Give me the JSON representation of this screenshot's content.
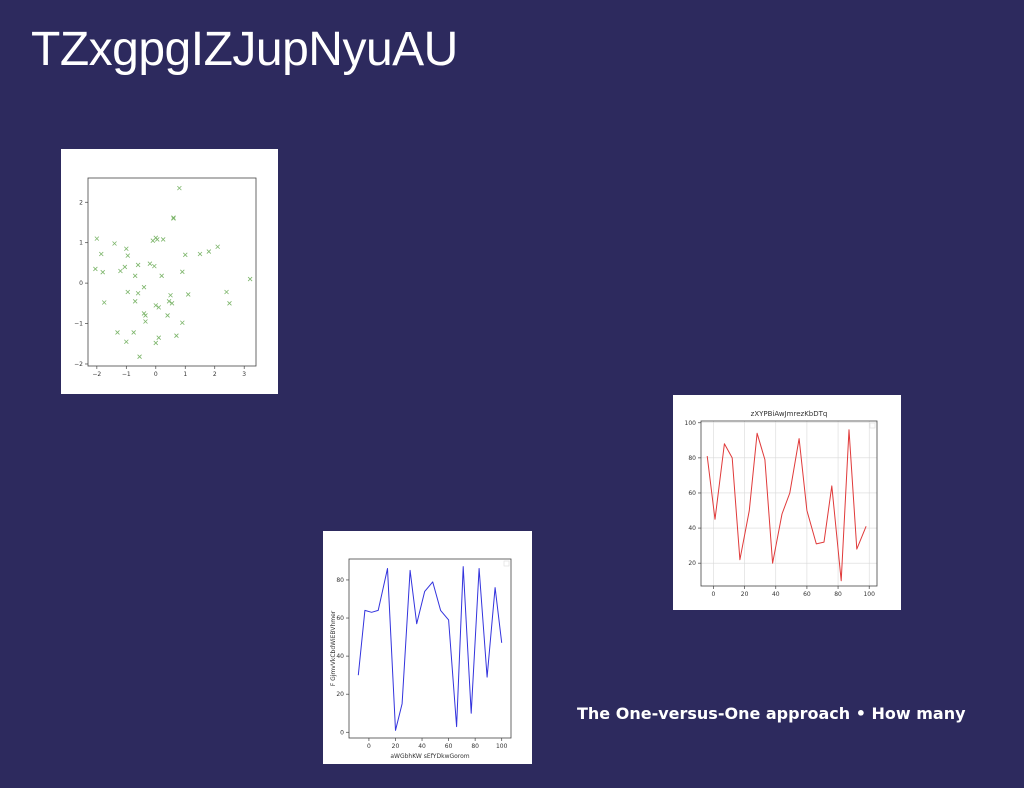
{
  "slide": {
    "title": "TZxgpgIZJupNyuAU",
    "caption": "The One-versus-One approach • How many",
    "background": "#2d2a5e"
  },
  "chart_data": [
    {
      "type": "scatter",
      "title": "",
      "xlabel": "",
      "ylabel": "",
      "marker": "x",
      "color": "#7cb56a",
      "xlim": [
        -2.3,
        3.4
      ],
      "ylim": [
        -2.05,
        2.6
      ],
      "xticks": [
        -2,
        -1,
        0,
        1,
        2,
        3
      ],
      "yticks": [
        -2,
        -1,
        0,
        1,
        2
      ],
      "grid": false,
      "points": [
        [
          0.8,
          2.35
        ],
        [
          0.6,
          1.62
        ],
        [
          0.6,
          1.6
        ],
        [
          -2.0,
          1.1
        ],
        [
          -1.4,
          0.98
        ],
        [
          -0.1,
          1.05
        ],
        [
          0.0,
          1.12
        ],
        [
          0.05,
          1.08
        ],
        [
          0.25,
          1.08
        ],
        [
          -1.0,
          0.85
        ],
        [
          -0.95,
          0.68
        ],
        [
          -1.85,
          0.72
        ],
        [
          2.1,
          0.9
        ],
        [
          1.8,
          0.78
        ],
        [
          1.5,
          0.72
        ],
        [
          1.0,
          0.7
        ],
        [
          -0.6,
          0.45
        ],
        [
          -0.2,
          0.48
        ],
        [
          -0.05,
          0.42
        ],
        [
          -1.2,
          0.3
        ],
        [
          -2.05,
          0.35
        ],
        [
          -1.8,
          0.27
        ],
        [
          -1.05,
          0.4
        ],
        [
          -0.7,
          0.18
        ],
        [
          0.2,
          0.18
        ],
        [
          0.9,
          0.28
        ],
        [
          3.2,
          0.1
        ],
        [
          -0.4,
          -0.1
        ],
        [
          -0.6,
          -0.25
        ],
        [
          -0.95,
          -0.22
        ],
        [
          0.5,
          -0.3
        ],
        [
          1.1,
          -0.28
        ],
        [
          2.4,
          -0.22
        ],
        [
          -1.75,
          -0.48
        ],
        [
          -0.7,
          -0.45
        ],
        [
          0.45,
          -0.45
        ],
        [
          0.55,
          -0.5
        ],
        [
          0.0,
          -0.55
        ],
        [
          0.1,
          -0.6
        ],
        [
          2.5,
          -0.5
        ],
        [
          -0.4,
          -0.75
        ],
        [
          -0.35,
          -0.8
        ],
        [
          0.4,
          -0.8
        ],
        [
          -0.35,
          -0.95
        ],
        [
          0.9,
          -0.98
        ],
        [
          -1.3,
          -1.22
        ],
        [
          -0.75,
          -1.22
        ],
        [
          0.7,
          -1.3
        ],
        [
          0.1,
          -1.35
        ],
        [
          -1.0,
          -1.45
        ],
        [
          0.0,
          -1.48
        ],
        [
          -0.55,
          -1.82
        ]
      ]
    },
    {
      "type": "line",
      "title": "",
      "xlabel": "aWGbhKW sEfYDkwGorom",
      "ylabel": "F GjmvVkCbdWiEBVhmer",
      "color": "#3333dd",
      "xlim": [
        -15,
        107
      ],
      "ylim": [
        -3,
        91
      ],
      "xticks": [
        0,
        20,
        40,
        60,
        80,
        100
      ],
      "yticks": [
        0,
        20,
        40,
        60,
        80
      ],
      "legend": "top-right",
      "grid": false,
      "x": [
        -8,
        -3,
        2,
        7,
        14,
        20,
        25,
        31,
        36,
        42,
        48,
        54,
        60,
        66,
        71,
        77,
        83,
        89,
        95,
        100
      ],
      "y": [
        30,
        64,
        63,
        64,
        86,
        1,
        15,
        85,
        57,
        74,
        79,
        64,
        59,
        3,
        87,
        10,
        86,
        29,
        76,
        47
      ]
    },
    {
      "type": "line",
      "title": "zXYPBiAwJmrezKbDTq",
      "xlabel": "",
      "ylabel": "",
      "color": "#e03a3a",
      "xlim": [
        -8,
        105
      ],
      "ylim": [
        7,
        101
      ],
      "xticks": [
        0,
        20,
        40,
        60,
        80,
        100
      ],
      "yticks": [
        20,
        40,
        60,
        80,
        100
      ],
      "legend": "top-right",
      "grid": true,
      "x": [
        -4,
        1,
        7,
        12,
        17,
        23,
        28,
        33,
        38,
        44,
        49,
        55,
        60,
        66,
        71,
        76,
        82,
        87,
        92,
        98
      ],
      "y": [
        81,
        45,
        88,
        80,
        22,
        50,
        94,
        79,
        20,
        48,
        60,
        91,
        50,
        31,
        32,
        64,
        10,
        96,
        28,
        41
      ]
    }
  ]
}
